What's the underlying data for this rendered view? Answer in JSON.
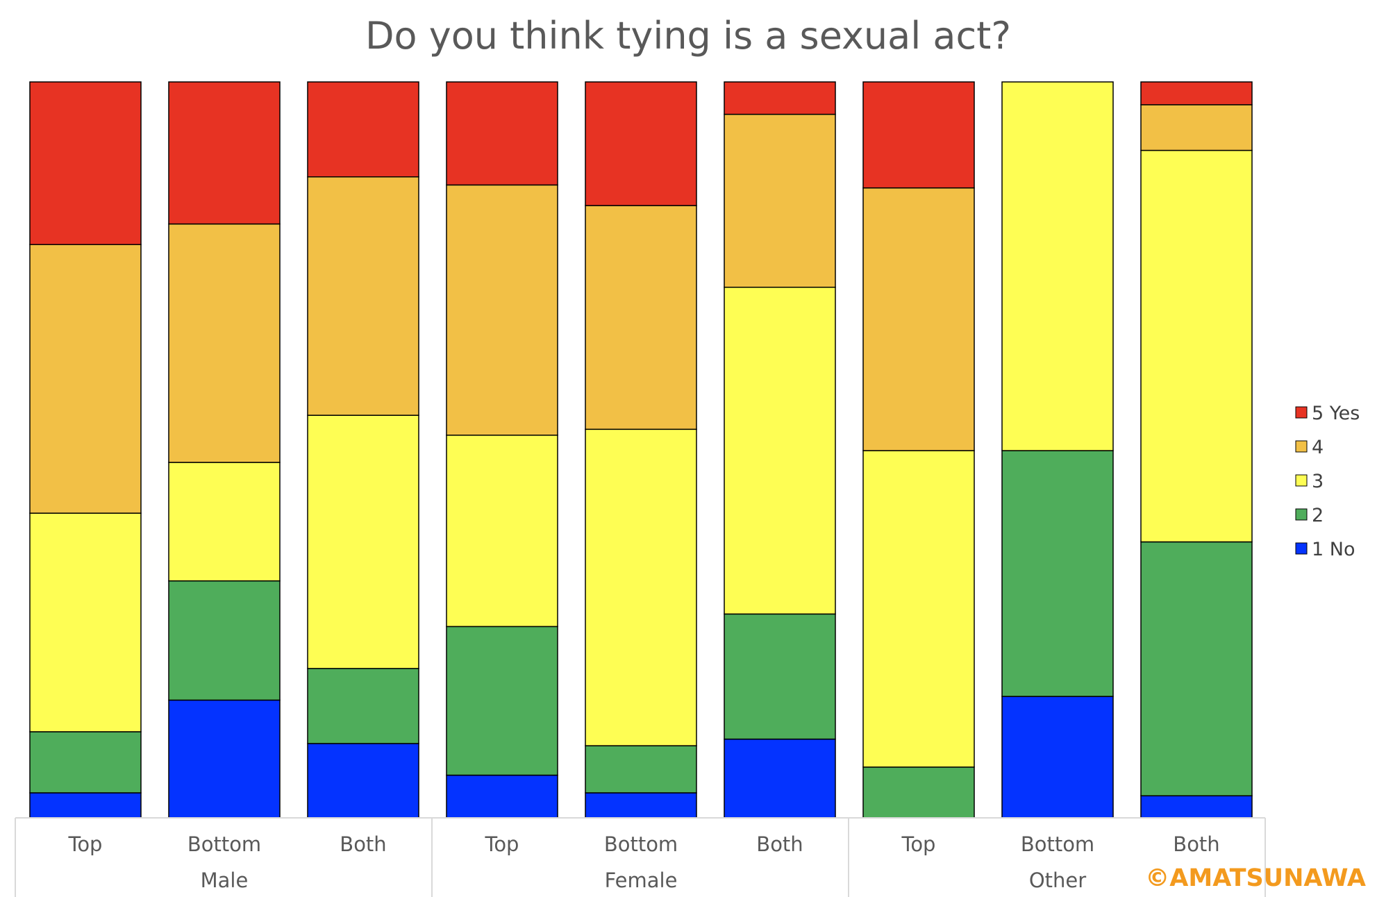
{
  "chart_data": {
    "type": "bar",
    "stacked": true,
    "normalized": true,
    "title": "Do you think tying is a sexual act?",
    "xlabel": "",
    "ylabel": "",
    "ylim": [
      0,
      1
    ],
    "grid": false,
    "legend_position": "right",
    "categories": [
      "Top",
      "Bottom",
      "Both",
      "Top",
      "Bottom",
      "Both",
      "Top",
      "Bottom",
      "Both"
    ],
    "groups": [
      {
        "label": "Male",
        "categories": [
          "Top",
          "Bottom",
          "Both"
        ]
      },
      {
        "label": "Female",
        "categories": [
          "Top",
          "Bottom",
          "Both"
        ]
      },
      {
        "label": "Other",
        "categories": [
          "Top",
          "Bottom",
          "Both"
        ]
      }
    ],
    "series": [
      {
        "name": "1 No",
        "color": "#0433ff",
        "values": [
          0.034,
          0.16,
          0.101,
          0.058,
          0.034,
          0.107,
          0.0,
          0.165,
          0.03
        ]
      },
      {
        "name": "2",
        "color": "#4fad5b",
        "values": [
          0.083,
          0.162,
          0.102,
          0.202,
          0.064,
          0.17,
          0.069,
          0.334,
          0.345
        ]
      },
      {
        "name": "3",
        "color": "#fefe54",
        "values": [
          0.297,
          0.161,
          0.344,
          0.26,
          0.43,
          0.444,
          0.43,
          0.501,
          0.532
        ]
      },
      {
        "name": "4",
        "color": "#f2c046",
        "values": [
          0.365,
          0.324,
          0.324,
          0.34,
          0.304,
          0.235,
          0.357,
          0.0,
          0.062
        ]
      },
      {
        "name": "5 Yes",
        "color": "#e73323",
        "values": [
          0.221,
          0.193,
          0.129,
          0.14,
          0.168,
          0.044,
          0.144,
          0.0,
          0.031
        ]
      }
    ],
    "legend_order": [
      "5 Yes",
      "4",
      "3",
      "2",
      "1 No"
    ]
  },
  "watermark": "©AMATSUNAWA"
}
